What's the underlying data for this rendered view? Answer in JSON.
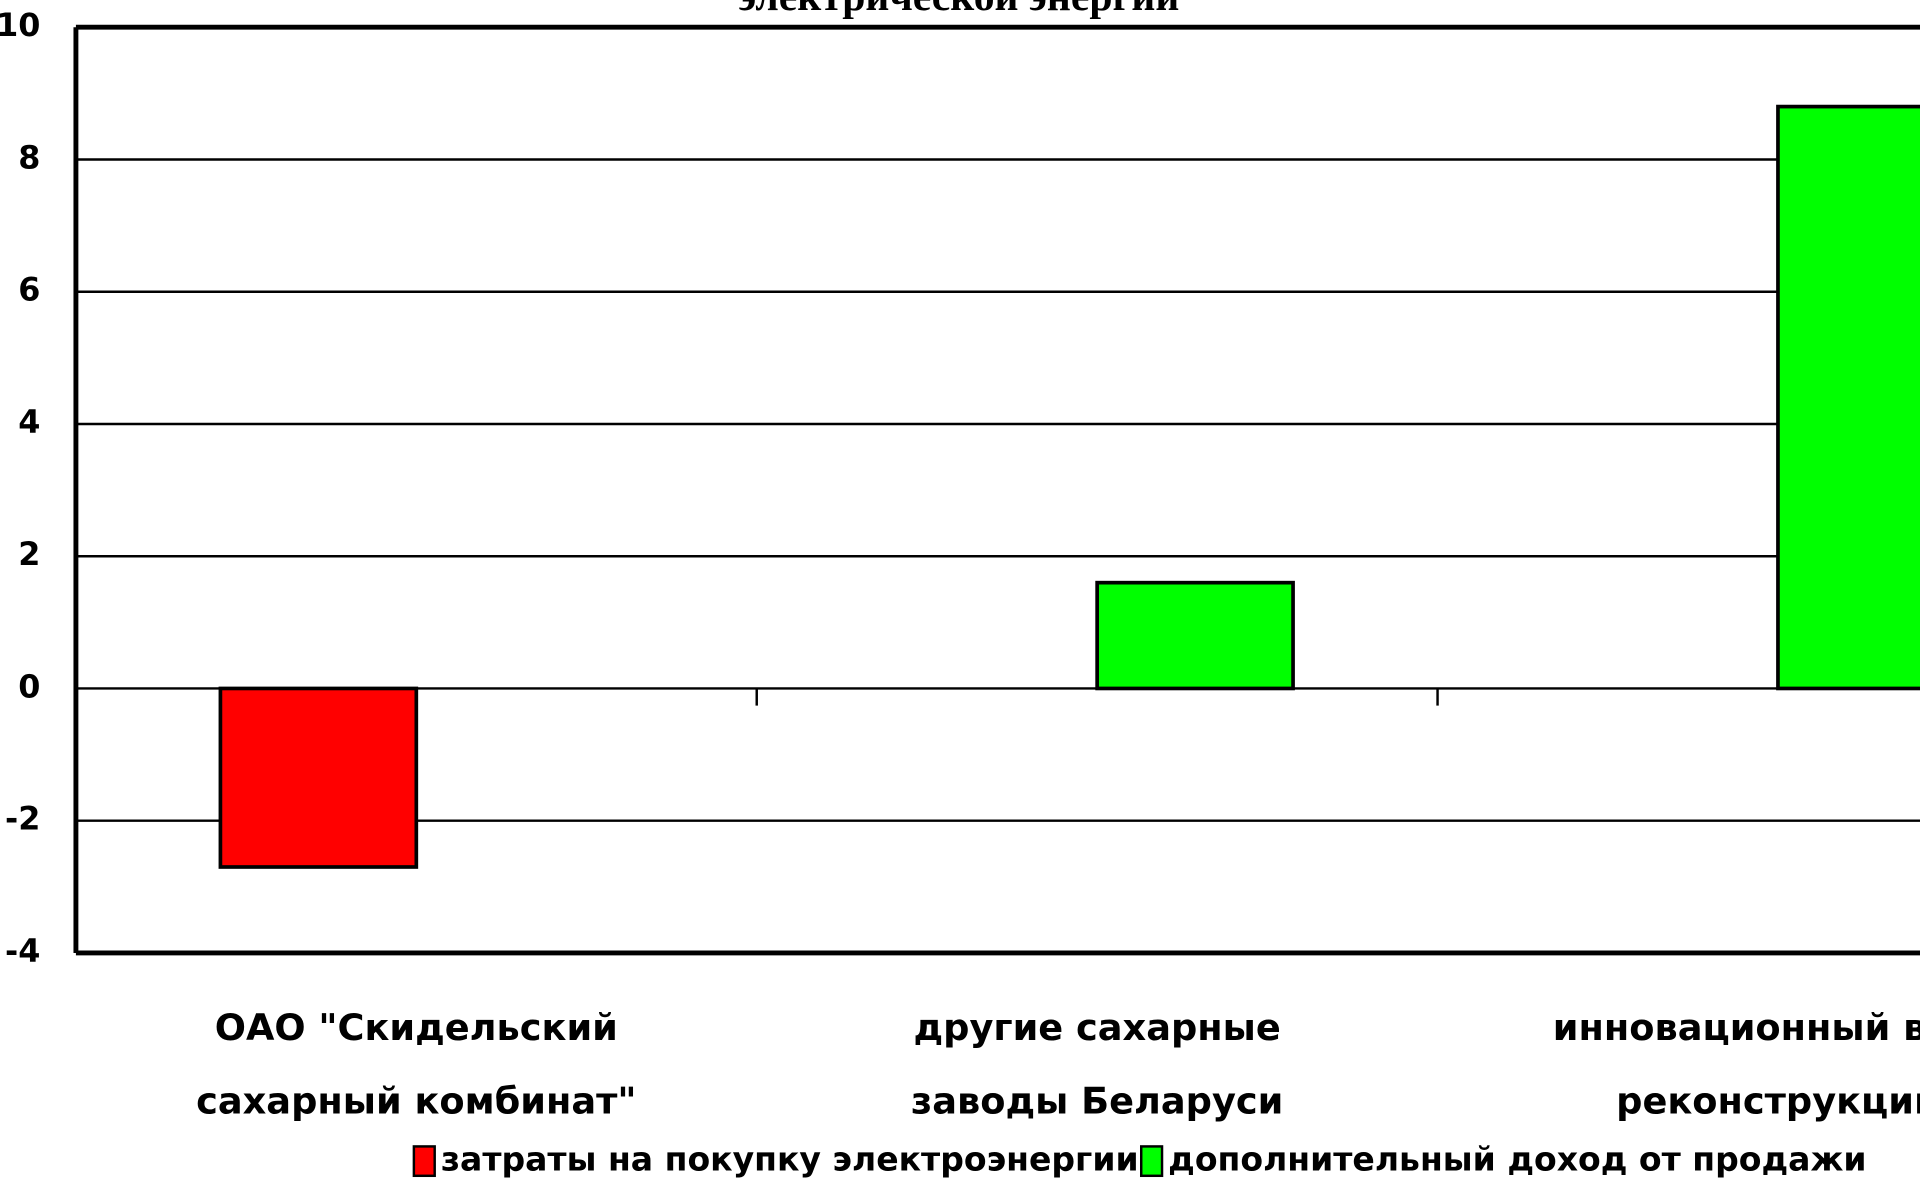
{
  "chart_data": {
    "type": "bar",
    "title": "электрической энергии",
    "categories": [
      "ОАО \"Скидельский сахарный комбинат\"",
      "другие сахарные заводы Беларуси",
      "инновационный вари реконструкции"
    ],
    "series": [
      {
        "name": "затраты на покупку электроэнергии",
        "color": "#ff0000",
        "values": [
          -2.7,
          null,
          null
        ]
      },
      {
        "name": "дополнительный доход от продажи",
        "color": "#00ff00",
        "values": [
          null,
          1.6,
          8.8
        ]
      }
    ],
    "ylim": [
      -4,
      10
    ],
    "yticks": [
      -4,
      -2,
      0,
      2,
      4,
      6,
      8,
      10
    ],
    "grid": true
  }
}
